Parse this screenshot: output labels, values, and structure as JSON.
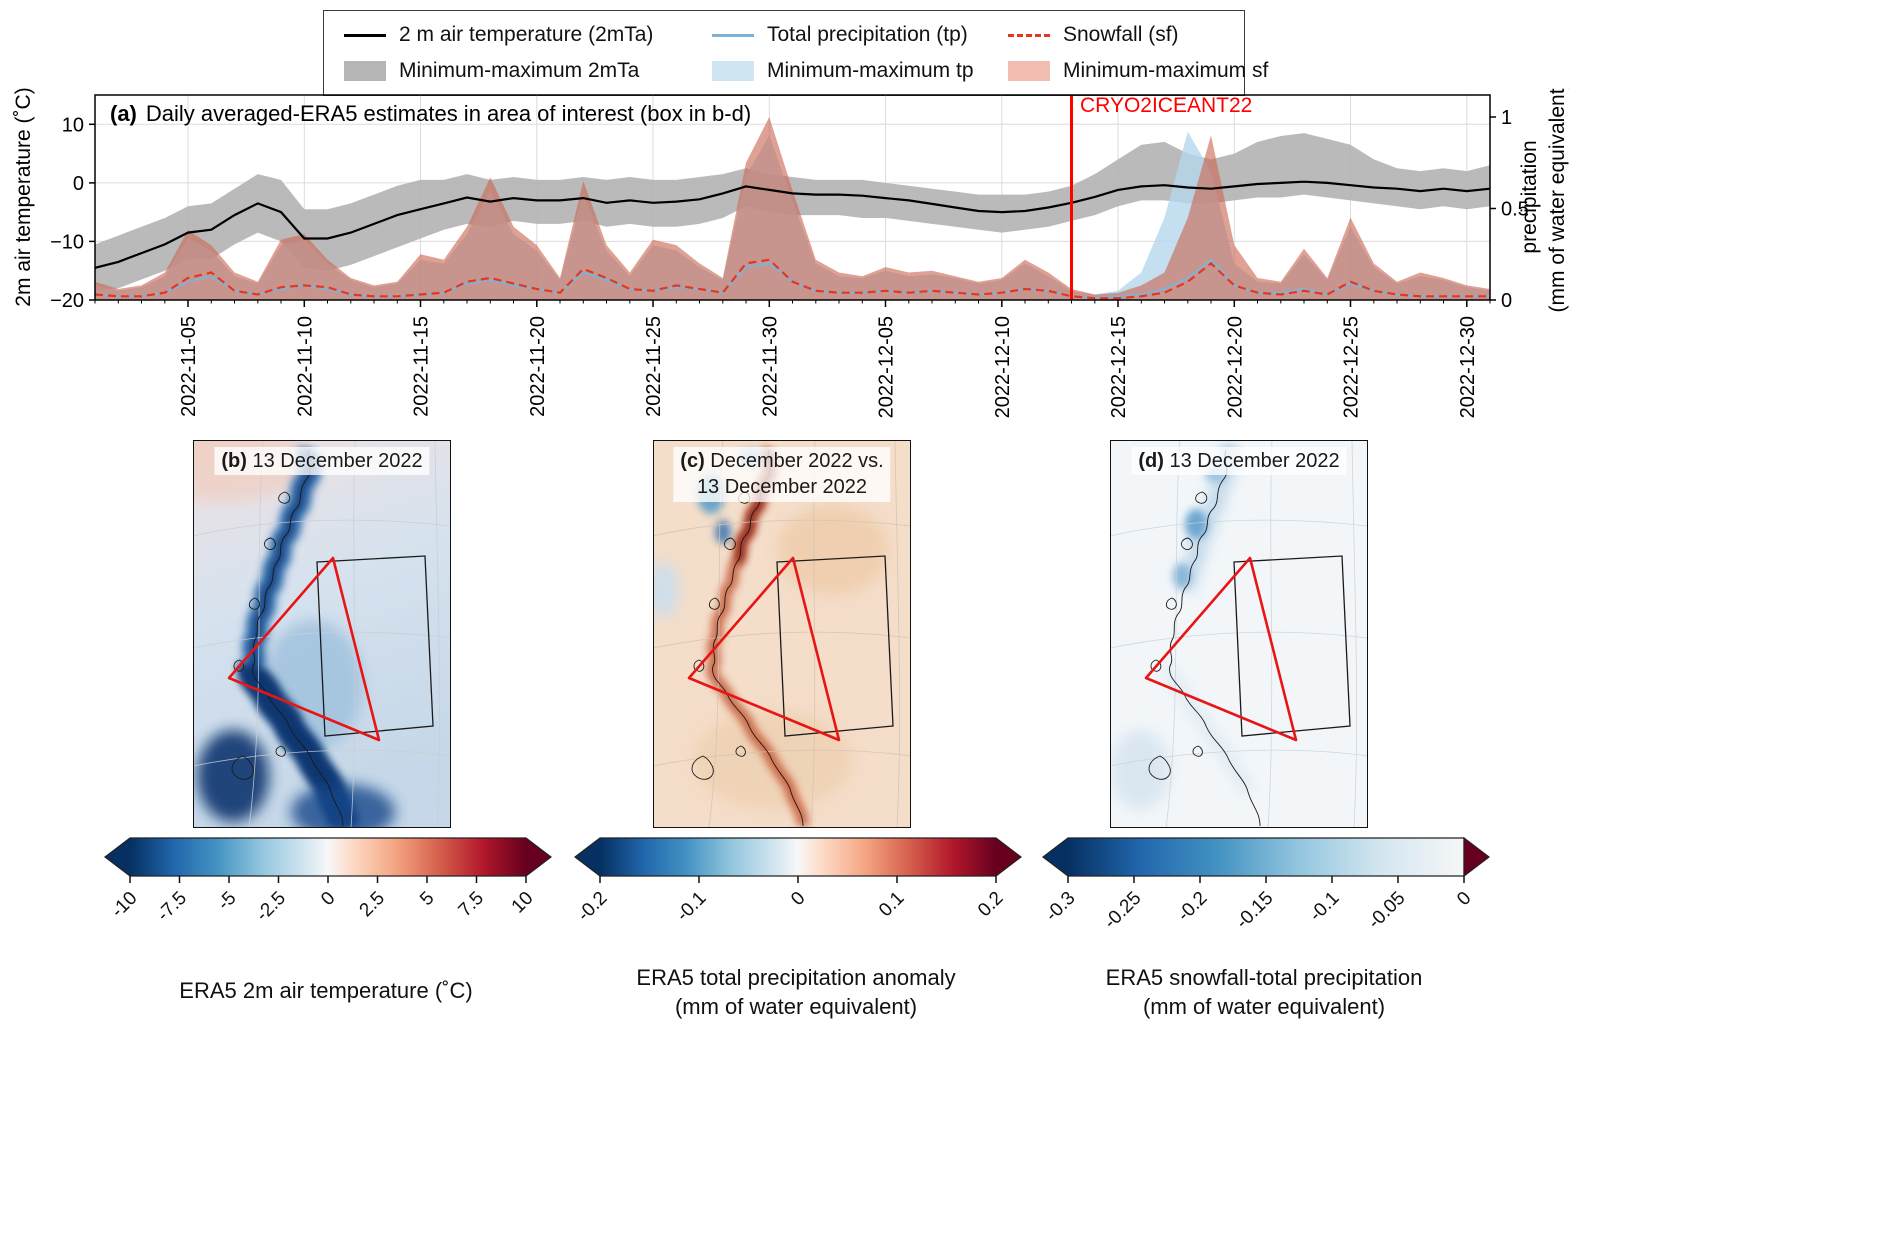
{
  "legend": {
    "items": [
      {
        "label": "2 m air temperature (2mTa)",
        "swatch": "line-solid",
        "color": "#000000"
      },
      {
        "label": "Total precipitation (tp)",
        "swatch": "line-solid",
        "color": "#7fb3d6"
      },
      {
        "label": "Snowfall (sf)",
        "swatch": "line-dashed",
        "color": "#e8351f"
      },
      {
        "label": "Minimum-maximum 2mTa",
        "swatch": "patch",
        "color": "#b5b5b5"
      },
      {
        "label": "Minimum-maximum tp",
        "swatch": "patch",
        "color": "#cfe5f2"
      },
      {
        "label": "Minimum-maximum sf",
        "swatch": "patch",
        "color": "#f1bdb0"
      }
    ]
  },
  "panel_a": {
    "title_bold": "(a)",
    "title": "Daily averaged-ERA5 estimates in area of interest (box in b-d)",
    "left_axis_label": "2m air temperature (˚C)",
    "right_axis_label_line1": "precipitation",
    "right_axis_label_line2": "(mm of water equivalent)",
    "annotation": "CRYO2ICEANT22"
  },
  "maps": {
    "b": {
      "tag": "(b)",
      "title": "13 December 2022",
      "colorbar_ticks": [
        "-10",
        "-7.5",
        "-5",
        "-2.5",
        "0",
        "2.5",
        "5",
        "7.5",
        "10"
      ],
      "colorbar_label1": "ERA5 2m air temperature (˚C)",
      "colorbar_label2": ""
    },
    "c": {
      "tag": "(c)",
      "title_line1": "December 2022 vs.",
      "title_line2": "13 December 2022",
      "colorbar_ticks": [
        "-0.2",
        "-0.1",
        "0",
        "0.1",
        "0.2"
      ],
      "colorbar_label1": "ERA5 total precipitation anomaly",
      "colorbar_label2": "(mm of water equivalent)"
    },
    "d": {
      "tag": "(d)",
      "title": "13 December 2022",
      "colorbar_ticks": [
        "-0.3",
        "-0.25",
        "-0.2",
        "-0.15",
        "-0.1",
        "-0.05",
        "0"
      ],
      "colorbar_label1": "ERA5 snowfall-total precipitation",
      "colorbar_label2": "(mm of water equivalent)"
    }
  },
  "chart_data": [
    {
      "type": "line",
      "panel": "a",
      "title": "(a) Daily averaged-ERA5 estimates in area of interest (box in b-d)",
      "x_start_date": "2022-11-01",
      "x_end_date": "2022-12-31",
      "n_days": 61,
      "x_tick_labels": [
        "2022-11-05",
        "2022-11-10",
        "2022-11-15",
        "2022-11-20",
        "2022-11-25",
        "2022-11-30",
        "2022-12-05",
        "2022-12-10",
        "2022-12-15",
        "2022-12-20",
        "2022-12-25",
        "2022-12-30"
      ],
      "x_tick_day_index": [
        4,
        9,
        14,
        19,
        24,
        29,
        34,
        39,
        44,
        49,
        54,
        59
      ],
      "left_axis": {
        "label": "2m air temperature (˚C)",
        "range": [
          -20,
          15
        ],
        "ticks": [
          10,
          0,
          -10,
          -20
        ],
        "tick_labels": [
          "10",
          "0",
          "−10",
          "−20"
        ],
        "grid_at": [
          10,
          0,
          -10
        ]
      },
      "right_axis": {
        "label": "precipitation (mm of water equivalent)",
        "range": [
          0,
          1.12
        ],
        "ticks": [
          1,
          0.5,
          0
        ],
        "tick_labels": [
          "1",
          "0.5",
          "0"
        ]
      },
      "annotation": {
        "label": "CRYO2ICEANT22",
        "date": "2022-12-13",
        "day_index": 42,
        "color": "#ff0000"
      },
      "grid": true,
      "legend_position": "top-outside",
      "series": [
        {
          "name": "2 m air temperature (2mTa)",
          "axis": "left",
          "style": "line",
          "color": "#000000",
          "width": 2.2,
          "values": [
            -14.5,
            -13.5,
            -12,
            -10.5,
            -8.5,
            -8,
            -5.5,
            -3.5,
            -5,
            -9.5,
            -9.5,
            -8.5,
            -7,
            -5.5,
            -4.5,
            -3.5,
            -2.5,
            -3.2,
            -2.6,
            -3,
            -3,
            -2.6,
            -3.4,
            -3,
            -3.4,
            -3.2,
            -2.8,
            -1.8,
            -0.6,
            -1.2,
            -1.8,
            -2,
            -2,
            -2.2,
            -2.6,
            -3,
            -3.6,
            -4.2,
            -4.8,
            -5,
            -4.8,
            -4.2,
            -3.4,
            -2.4,
            -1.2,
            -0.6,
            -0.4,
            -0.8,
            -1,
            -0.6,
            -0.2,
            0,
            0.2,
            0,
            -0.4,
            -0.8,
            -1,
            -1.4,
            -1,
            -1.4,
            -1
          ]
        },
        {
          "name": "Minimum-maximum 2mTa",
          "axis": "left",
          "style": "band",
          "fill": "#b3b3b3",
          "opacity": 0.9,
          "upper": [
            -10.5,
            -9,
            -7.5,
            -6,
            -4,
            -3.5,
            -1,
            1.5,
            0.5,
            -4.5,
            -4.5,
            -3.5,
            -2,
            -0.5,
            0.5,
            0.5,
            1.5,
            0.5,
            1,
            0.5,
            0.5,
            1,
            0.5,
            1,
            0.5,
            0.5,
            1,
            1.5,
            2.5,
            1.5,
            1,
            0.5,
            0.5,
            0.5,
            0,
            -0.5,
            -1,
            -1.5,
            -2,
            -2,
            -2,
            -1.5,
            -0.5,
            1.5,
            4,
            6.5,
            7,
            5,
            4,
            5,
            7,
            8,
            8.5,
            7.5,
            6.5,
            4,
            2.5,
            2,
            2.5,
            2,
            3
          ],
          "lower": [
            -18.5,
            -18,
            -16.5,
            -15,
            -13,
            -13,
            -10.5,
            -8.5,
            -10,
            -14.5,
            -15,
            -14,
            -12.5,
            -11,
            -9.5,
            -8,
            -7,
            -7.5,
            -6.5,
            -7,
            -7,
            -6.5,
            -7.5,
            -7,
            -7.5,
            -7.5,
            -7,
            -6,
            -4,
            -5,
            -5.5,
            -5.5,
            -5.5,
            -6,
            -6,
            -6.5,
            -7,
            -7.5,
            -8,
            -8.5,
            -8,
            -7.5,
            -6.5,
            -5.5,
            -4,
            -3,
            -3,
            -3.5,
            -3.5,
            -3,
            -2.5,
            -2.5,
            -2,
            -2.5,
            -3,
            -3.5,
            -4,
            -4.5,
            -4,
            -4.5,
            -4
          ]
        },
        {
          "name": "Total precipitation (tp)",
          "axis": "right",
          "style": "line",
          "color": "#7fb3d6",
          "width": 2,
          "values": [
            0.03,
            0.02,
            0.02,
            0.04,
            0.1,
            0.13,
            0.05,
            0.03,
            0.06,
            0.08,
            0.06,
            0.03,
            0.02,
            0.02,
            0.03,
            0.04,
            0.09,
            0.11,
            0.08,
            0.06,
            0.04,
            0.15,
            0.11,
            0.06,
            0.05,
            0.07,
            0.06,
            0.04,
            0.18,
            0.2,
            0.1,
            0.05,
            0.04,
            0.04,
            0.05,
            0.04,
            0.05,
            0.04,
            0.03,
            0.04,
            0.06,
            0.05,
            0.02,
            0.01,
            0.02,
            0.03,
            0.06,
            0.12,
            0.22,
            0.08,
            0.04,
            0.04,
            0.06,
            0.03,
            0.09,
            0.05,
            0.03,
            0.02,
            0.02,
            0.02,
            0.02
          ]
        },
        {
          "name": "Minimum-maximum tp",
          "axis": "right",
          "style": "band",
          "fill": "#b5d7eb",
          "opacity": 0.8,
          "lower_constant": 0,
          "upper": [
            0.08,
            0.05,
            0.07,
            0.13,
            0.34,
            0.27,
            0.13,
            0.09,
            0.3,
            0.33,
            0.2,
            0.11,
            0.07,
            0.09,
            0.22,
            0.2,
            0.36,
            0.6,
            0.36,
            0.27,
            0.11,
            0.58,
            0.27,
            0.13,
            0.3,
            0.27,
            0.18,
            0.11,
            0.68,
            0.9,
            0.54,
            0.2,
            0.13,
            0.12,
            0.16,
            0.13,
            0.14,
            0.12,
            0.09,
            0.11,
            0.2,
            0.13,
            0.05,
            0.03,
            0.05,
            0.15,
            0.45,
            0.92,
            0.7,
            0.2,
            0.1,
            0.09,
            0.25,
            0.11,
            0.4,
            0.18,
            0.09,
            0.13,
            0.11,
            0.07,
            0.05
          ]
        },
        {
          "name": "Snowfall (sf)",
          "axis": "right",
          "style": "line-dashed",
          "color": "#e8351f",
          "width": 2.2,
          "dash": "8 5",
          "values": [
            0.03,
            0.02,
            0.02,
            0.04,
            0.12,
            0.15,
            0.05,
            0.03,
            0.07,
            0.08,
            0.07,
            0.03,
            0.02,
            0.02,
            0.03,
            0.04,
            0.1,
            0.12,
            0.09,
            0.06,
            0.04,
            0.17,
            0.12,
            0.06,
            0.05,
            0.08,
            0.06,
            0.04,
            0.2,
            0.22,
            0.1,
            0.05,
            0.04,
            0.04,
            0.05,
            0.04,
            0.05,
            0.04,
            0.03,
            0.04,
            0.06,
            0.05,
            0.02,
            0.01,
            0.01,
            0.02,
            0.04,
            0.1,
            0.2,
            0.08,
            0.04,
            0.03,
            0.05,
            0.03,
            0.1,
            0.05,
            0.03,
            0.02,
            0.02,
            0.02,
            0.02
          ]
        },
        {
          "name": "Minimum-maximum sf",
          "axis": "right",
          "style": "band",
          "fill": "#ca6753",
          "opacity": 0.62,
          "lower_constant": 0,
          "upper": [
            0.1,
            0.06,
            0.08,
            0.15,
            0.38,
            0.3,
            0.15,
            0.1,
            0.33,
            0.36,
            0.22,
            0.12,
            0.08,
            0.1,
            0.25,
            0.22,
            0.4,
            0.67,
            0.4,
            0.3,
            0.12,
            0.65,
            0.3,
            0.15,
            0.33,
            0.3,
            0.2,
            0.12,
            0.75,
            1.0,
            0.6,
            0.22,
            0.15,
            0.13,
            0.18,
            0.15,
            0.16,
            0.13,
            0.1,
            0.12,
            0.22,
            0.15,
            0.06,
            0.03,
            0.04,
            0.08,
            0.15,
            0.45,
            0.9,
            0.3,
            0.12,
            0.1,
            0.28,
            0.12,
            0.45,
            0.2,
            0.1,
            0.15,
            0.12,
            0.08,
            0.06
          ]
        }
      ]
    },
    {
      "type": "heatmap",
      "panel": "b",
      "title": "(b) 13 December 2022",
      "variable": "ERA5 2m air temperature (˚C)",
      "colormap": "RdBu_r",
      "range": [
        -10,
        10
      ],
      "colorbar_ticks": [
        -10,
        -7.5,
        -5,
        -2.5,
        0,
        2.5,
        5,
        7.5,
        10
      ],
      "annotations": [
        "red flight triangle",
        "black area-of-interest box",
        "coastline contour"
      ],
      "description": "Antarctic Peninsula map: cold (blue) band along coast and ice shelf, mild (pink/white) elsewhere"
    },
    {
      "type": "heatmap",
      "panel": "c",
      "title": "(c) December 2022 vs. 13 December 2022",
      "variable": "ERA5 total precipitation anomaly (mm of water equivalent)",
      "colormap": "RdBu_r",
      "range": [
        -0.25,
        0.25
      ],
      "colorbar_ticks": [
        -0.2,
        -0.1,
        0,
        0.1,
        0.2
      ],
      "annotations": [
        "red flight triangle",
        "black area-of-interest box",
        "coastline contour"
      ],
      "description": "Mostly positive (orange) anomaly with strong positive (dark red) streak along the peninsula coast and small negative (blue) patches northwest"
    },
    {
      "type": "heatmap",
      "panel": "d",
      "title": "(d) 13 December 2022",
      "variable": "ERA5 snowfall-total precipitation (mm of water equivalent)",
      "colormap": "Blues_r",
      "range": [
        -0.33,
        0
      ],
      "colorbar_ticks": [
        -0.3,
        -0.25,
        -0.2,
        -0.15,
        -0.1,
        -0.05,
        0
      ],
      "annotations": [
        "red flight triangle",
        "black area-of-interest box",
        "coastline contour"
      ],
      "description": "Mostly near zero (white) with weak negative (light blue) values along the northern peninsula coast"
    }
  ]
}
